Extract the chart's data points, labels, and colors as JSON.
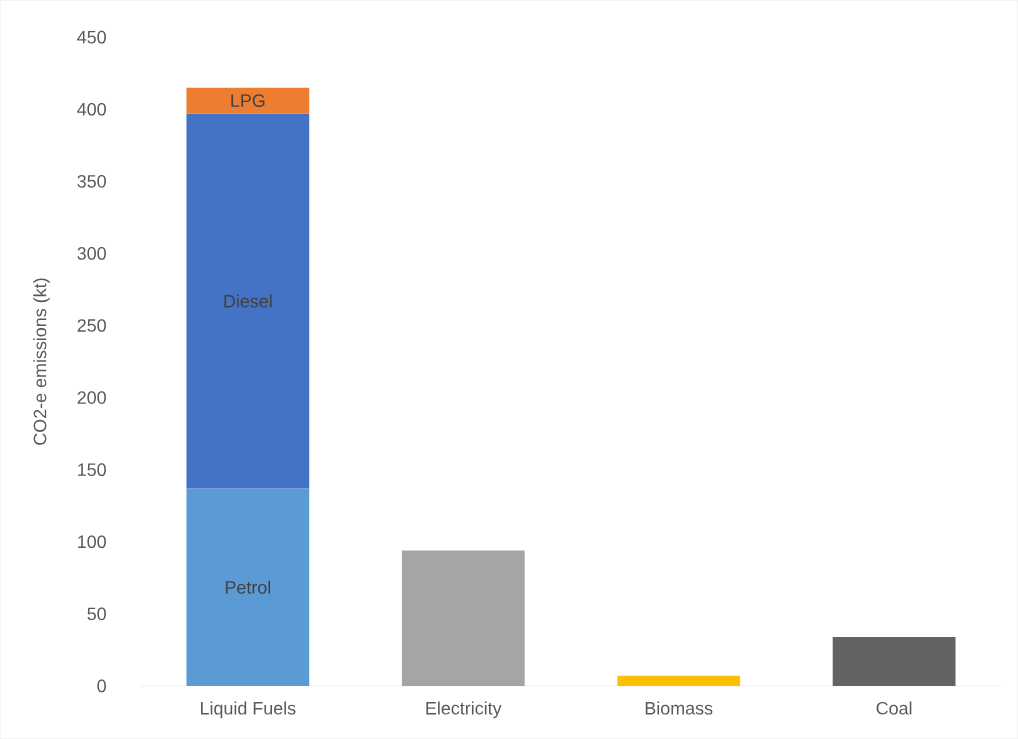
{
  "chart_data": {
    "type": "bar",
    "stacked": true,
    "ylabel": "CO2-e emissions (kt)",
    "categories": [
      "Liquid Fuels",
      "Electricity",
      "Biomass",
      "Coal"
    ],
    "series": [
      {
        "name": "Petrol",
        "color": "#5b9bd5",
        "values": [
          137,
          null,
          null,
          null
        ]
      },
      {
        "name": "Diesel",
        "color": "#4472c4",
        "values": [
          260,
          null,
          null,
          null
        ]
      },
      {
        "name": "LPG",
        "color": "#ed7d31",
        "values": [
          18,
          null,
          null,
          null
        ]
      },
      {
        "colors": [
          null,
          "#a5a5a5",
          "#ffc000",
          "#636363"
        ],
        "values": [
          null,
          94,
          7,
          34
        ]
      }
    ],
    "ylim": [
      0,
      450
    ],
    "yticks": [
      0,
      50,
      100,
      150,
      200,
      250,
      300,
      350,
      400,
      450
    ],
    "grid": false
  }
}
